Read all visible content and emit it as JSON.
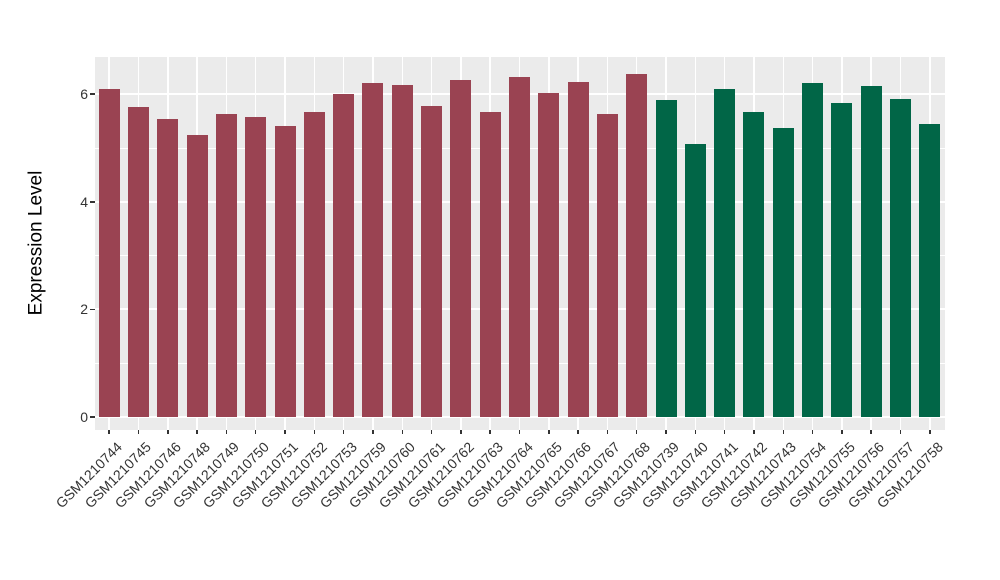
{
  "chart_data": {
    "type": "bar",
    "title": "",
    "ylabel": "Expression Level",
    "categories": [
      "GSM1210744",
      "GSM1210745",
      "GSM1210746",
      "GSM1210748",
      "GSM1210749",
      "GSM1210750",
      "GSM1210751",
      "GSM1210752",
      "GSM1210753",
      "GSM1210759",
      "GSM1210760",
      "GSM1210761",
      "GSM1210762",
      "GSM1210763",
      "GSM1210764",
      "GSM1210765",
      "GSM1210766",
      "GSM1210767",
      "GSM1210768",
      "GSM1210739",
      "GSM1210740",
      "GSM1210741",
      "GSM1210742",
      "GSM1210743",
      "GSM1210754",
      "GSM1210755",
      "GSM1210756",
      "GSM1210757",
      "GSM1210758"
    ],
    "values": [
      6.09,
      5.76,
      5.53,
      5.24,
      5.64,
      5.58,
      5.4,
      5.67,
      6.01,
      6.21,
      6.18,
      5.78,
      6.27,
      5.67,
      6.32,
      6.02,
      6.22,
      5.63,
      6.37,
      5.89,
      5.08,
      6.09,
      5.67,
      5.38,
      6.2,
      5.84,
      6.15,
      5.92,
      5.44
    ],
    "color_groups": [
      {
        "color": "#9A4352",
        "count": 19
      },
      {
        "color": "#016647",
        "count": 10
      }
    ],
    "ytick_labels": [
      "0",
      "2",
      "4",
      "6"
    ],
    "ytick_values": [
      0,
      2,
      4,
      6
    ],
    "yminor_values": [
      1,
      3,
      5
    ],
    "ylim": [
      -0.25,
      6.69
    ],
    "xlabel": "",
    "legend": "none",
    "grid": "on",
    "panel_bg": "#EBEBEB",
    "grid_color": "#FFFFFF",
    "tick_mark_color": "#333333",
    "tick_label_color": "#333333",
    "axis_title_color": "#000000"
  }
}
